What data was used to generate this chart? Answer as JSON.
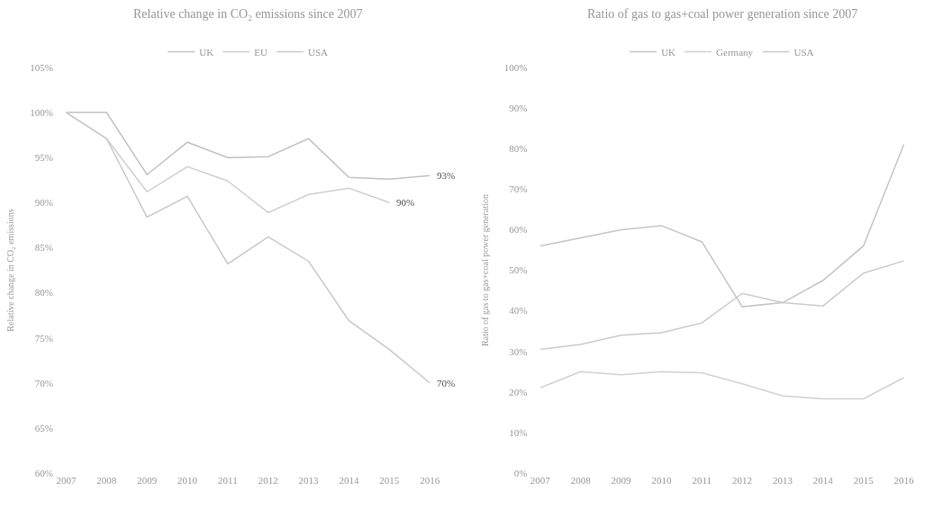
{
  "chart_data": [
    {
      "type": "line",
      "title": "Relative change in CO₂ emissions since 2007",
      "ylabel": "Relative change in CO₂ emissions",
      "categories": [
        "2007",
        "2008",
        "2009",
        "2010",
        "2011",
        "2012",
        "2013",
        "2014",
        "2015",
        "2016"
      ],
      "series": [
        {
          "name": "UK",
          "color": "#c2c2c2",
          "values": [
            100,
            100,
            93.1,
            96.7,
            95.0,
            95.1,
            97.1,
            92.8,
            92.6,
            93
          ]
        },
        {
          "name": "EU",
          "color": "#d0d0d0",
          "values": [
            100,
            97.1,
            91.2,
            94.0,
            92.4,
            88.9,
            90.9,
            91.6,
            90,
            null
          ]
        },
        {
          "name": "USA",
          "color": "#cacaca",
          "values": [
            100,
            97.1,
            88.4,
            90.7,
            83.2,
            86.2,
            83.5,
            76.9,
            73.7,
            70
          ]
        }
      ],
      "ylim": [
        60,
        105
      ],
      "yticks": [
        {
          "value": 60,
          "label": "60%"
        },
        {
          "value": 65,
          "label": "65%"
        },
        {
          "value": 70,
          "label": "70%"
        },
        {
          "value": 75,
          "label": "75%"
        },
        {
          "value": 80,
          "label": "80%"
        },
        {
          "value": 85,
          "label": "85%"
        },
        {
          "value": 90,
          "label": "90%"
        },
        {
          "value": 95,
          "label": "95%"
        },
        {
          "value": 100,
          "label": "100%"
        },
        {
          "value": 105,
          "label": "105%"
        }
      ],
      "annotations": [
        {
          "text": "93%",
          "x": "2016",
          "y": 93
        },
        {
          "text": "90%",
          "x": "2015",
          "y": 90
        },
        {
          "text": "70%",
          "x": "2016",
          "y": 70
        }
      ],
      "legend": "top"
    },
    {
      "type": "line",
      "title": "Ratio of gas to gas+coal power generation since 2007",
      "ylabel": "Ratio of gas to gas+coal power generation",
      "categories": [
        "2007",
        "2008",
        "2009",
        "2010",
        "2011",
        "2012",
        "2013",
        "2014",
        "2015",
        "2016"
      ],
      "series": [
        {
          "name": "UK",
          "color": "#c6c6c6",
          "values": [
            56,
            58,
            60,
            61,
            57,
            41,
            42,
            47.5,
            56,
            81
          ]
        },
        {
          "name": "Germany",
          "color": "#d2d2d2",
          "values": [
            21,
            25,
            24.2,
            25,
            24.7,
            22,
            19,
            18.3,
            18.3,
            23.5
          ]
        },
        {
          "name": "USA",
          "color": "#cccccc",
          "values": [
            30.5,
            31.7,
            34,
            34.6,
            37,
            44.3,
            42,
            41.2,
            49.3,
            52.3
          ]
        }
      ],
      "ylim": [
        0,
        100
      ],
      "yticks": [
        {
          "value": 0,
          "label": "0%"
        },
        {
          "value": 10,
          "label": "10%"
        },
        {
          "value": 20,
          "label": "20%"
        },
        {
          "value": 30,
          "label": "30%"
        },
        {
          "value": 40,
          "label": "40%"
        },
        {
          "value": 50,
          "label": "50%"
        },
        {
          "value": 60,
          "label": "60%"
        },
        {
          "value": 70,
          "label": "70%"
        },
        {
          "value": 80,
          "label": "80%"
        },
        {
          "value": 90,
          "label": "90%"
        },
        {
          "value": 100,
          "label": "100%"
        }
      ],
      "legend": "top"
    }
  ]
}
